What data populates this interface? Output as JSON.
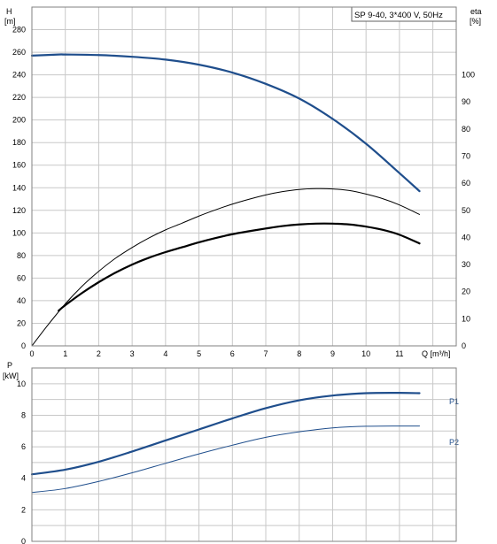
{
  "chart_data": [
    {
      "type": "line",
      "title": "SP 9-40, 3*400 V, 50Hz",
      "xlabel": "Q [m³/h]",
      "xlim": [
        0,
        12.7
      ],
      "xticks": [
        0,
        1,
        2,
        3,
        4,
        5,
        6,
        7,
        8,
        9,
        10,
        11
      ],
      "y_left": {
        "label_line1": "H",
        "label_line2": "[m]",
        "ylim": [
          0,
          300
        ],
        "ticks": [
          0,
          20,
          40,
          60,
          80,
          100,
          120,
          140,
          160,
          180,
          200,
          220,
          240,
          260,
          280
        ]
      },
      "y_right": {
        "label_line1": "eta",
        "label_line2": "[%]",
        "ylim": [
          0,
          125
        ],
        "ticks": [
          0,
          10,
          20,
          30,
          40,
          50,
          60,
          70,
          80,
          90,
          100
        ]
      },
      "grid": true,
      "colors": {
        "head": "#1f4e8c",
        "eta_thin": "#000000",
        "eta_thick": "#000000",
        "grid": "#c8c8c8"
      },
      "series": [
        {
          "axis": "left",
          "style": "head",
          "x": [
            0,
            0.8,
            1,
            2,
            3,
            4,
            5,
            6,
            7,
            8,
            9,
            10,
            11,
            11.6
          ],
          "y": [
            257,
            258,
            258,
            257.5,
            256,
            253.5,
            249,
            242,
            232,
            219,
            201,
            179,
            153,
            137
          ]
        },
        {
          "axis": "right",
          "style": "eta_thin",
          "x": [
            0,
            0.5,
            1,
            1.5,
            2,
            2.5,
            3,
            3.5,
            4,
            4.5,
            5,
            5.5,
            6,
            6.5,
            7,
            7.5,
            8,
            8.5,
            9,
            9.5,
            10,
            10.5,
            11,
            11.6
          ],
          "y": [
            0,
            8,
            15.5,
            22,
            27.5,
            32.3,
            36.3,
            39.8,
            42.8,
            45.3,
            47.9,
            50.2,
            52.3,
            54.1,
            55.7,
            56.9,
            57.7,
            58,
            57.9,
            57.3,
            56,
            54.3,
            52,
            48.5
          ]
        },
        {
          "axis": "right",
          "style": "eta_thick",
          "x": [
            0.8,
            1,
            1.5,
            2,
            2.5,
            3,
            3.5,
            4,
            4.5,
            5,
            5.5,
            6,
            6.5,
            7,
            7.5,
            8,
            8.5,
            9,
            9.5,
            10,
            10.5,
            11,
            11.6
          ],
          "y": [
            13,
            15,
            19.5,
            23.5,
            27,
            30,
            32.5,
            34.6,
            36.4,
            38.2,
            39.8,
            41.2,
            42.3,
            43.3,
            44.2,
            44.8,
            45.1,
            45.1,
            44.8,
            44,
            42.8,
            41,
            37.8
          ]
        }
      ]
    },
    {
      "type": "line",
      "ylabel_line1": "P",
      "ylabel_line2": "[kW]",
      "xlim": [
        0,
        12.7
      ],
      "ylim": [
        0,
        11
      ],
      "yticks": [
        0,
        2,
        4,
        6,
        8,
        10
      ],
      "grid": true,
      "colors": {
        "P1": "#1f4e8c",
        "P2": "#1f4e8c"
      },
      "series": [
        {
          "name": "P1",
          "style": "thick",
          "x": [
            0,
            1,
            2,
            3,
            4,
            5,
            6,
            7,
            8,
            9,
            10,
            11,
            11.6
          ],
          "y": [
            4.25,
            4.55,
            5.05,
            5.7,
            6.4,
            7.1,
            7.8,
            8.45,
            8.95,
            9.25,
            9.4,
            9.42,
            9.4
          ]
        },
        {
          "name": "P2",
          "style": "thin",
          "x": [
            0,
            1,
            2,
            3,
            4,
            5,
            6,
            7,
            8,
            9,
            10,
            11,
            11.6
          ],
          "y": [
            3.1,
            3.35,
            3.8,
            4.35,
            4.95,
            5.55,
            6.1,
            6.6,
            6.95,
            7.2,
            7.3,
            7.32,
            7.32
          ]
        }
      ]
    }
  ]
}
